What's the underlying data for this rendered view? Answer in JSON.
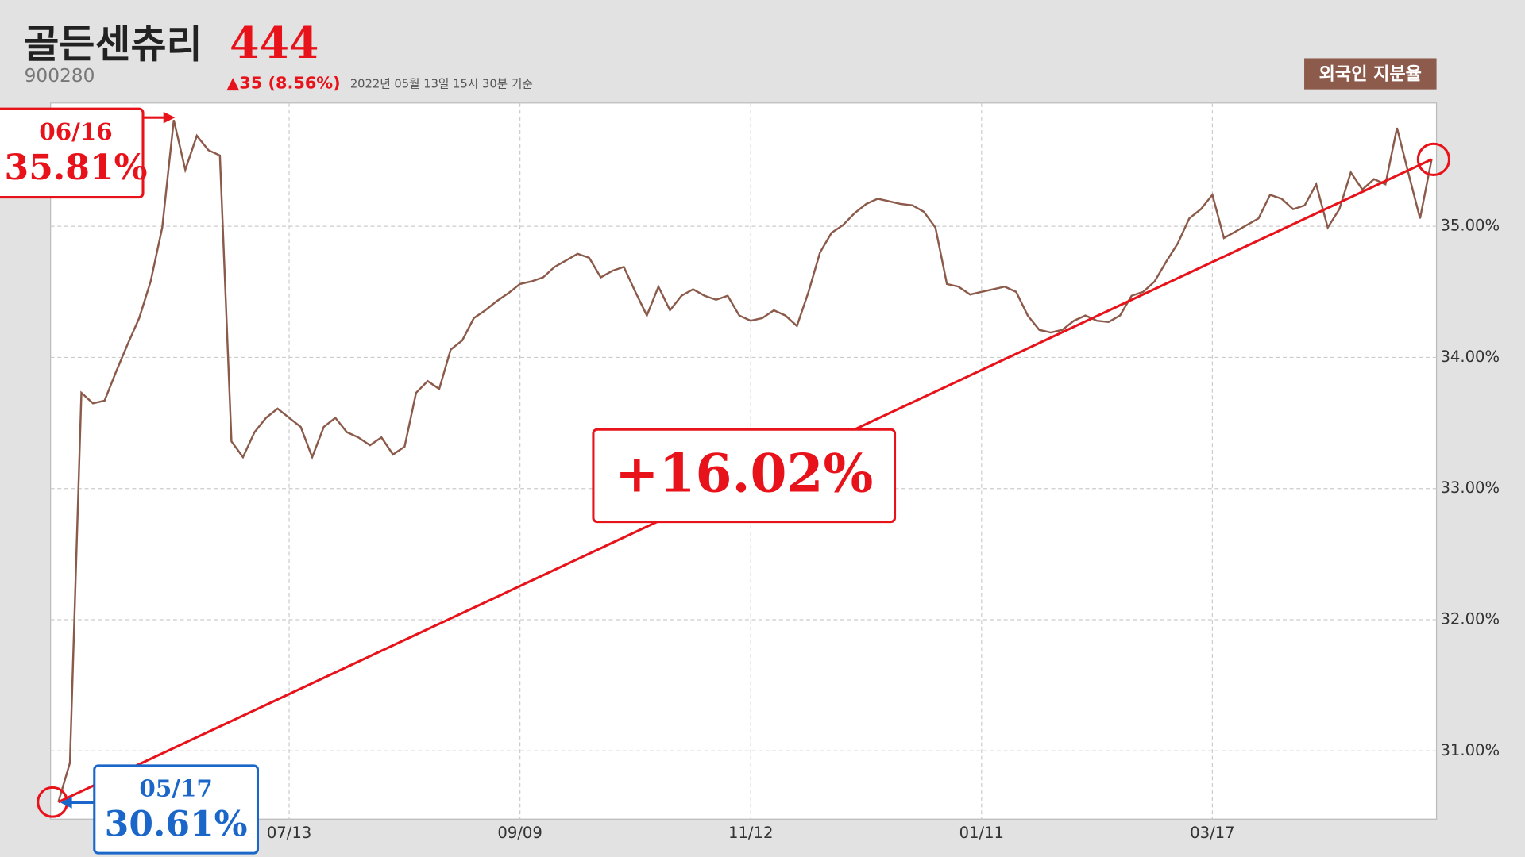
{
  "header": {
    "title": "골든센츄리",
    "price": "444",
    "code": "900280",
    "change": "▲35 (8.56%)",
    "timestamp": "2022년 05월 13일 15시 30분 기준",
    "badge": "외국인 지분율"
  },
  "chart_data": {
    "type": "line",
    "categories": [
      null,
      null,
      null,
      null,
      null,
      null,
      null,
      null,
      null,
      null,
      null,
      null,
      null,
      null,
      null,
      null,
      null,
      null,
      null,
      null,
      "07/13",
      null,
      null,
      null,
      null,
      null,
      null,
      null,
      null,
      null,
      null,
      null,
      null,
      null,
      null,
      null,
      null,
      null,
      null,
      null,
      "09/09",
      null,
      null,
      null,
      null,
      null,
      null,
      null,
      null,
      null,
      null,
      null,
      null,
      null,
      null,
      null,
      null,
      null,
      null,
      null,
      "11/12",
      null,
      null,
      null,
      null,
      null,
      null,
      null,
      null,
      null,
      null,
      null,
      null,
      null,
      null,
      null,
      null,
      null,
      null,
      null,
      "01/11",
      null,
      null,
      null,
      null,
      null,
      null,
      null,
      null,
      null,
      null,
      null,
      null,
      null,
      null,
      null,
      null,
      null,
      null,
      null,
      "03/17",
      null,
      null,
      null,
      null,
      null,
      null,
      null,
      null,
      null,
      null,
      null,
      null,
      null,
      null,
      null,
      null,
      null,
      null,
      null
    ],
    "series": [
      {
        "name": "외국인 지분율",
        "color": "#8b5a4a",
        "values": [
          30.61,
          30.91,
          33.73,
          33.65,
          33.67,
          33.89,
          34.1,
          34.3,
          34.58,
          34.99,
          35.81,
          35.43,
          35.69,
          35.58,
          35.54,
          33.36,
          33.24,
          33.43,
          33.54,
          33.61,
          33.54,
          33.47,
          33.24,
          33.47,
          33.54,
          33.43,
          33.39,
          33.33,
          33.39,
          33.26,
          33.32,
          33.73,
          33.82,
          33.76,
          34.06,
          34.13,
          34.3,
          34.36,
          34.43,
          34.49,
          34.56,
          34.58,
          34.61,
          34.69,
          34.74,
          34.79,
          34.76,
          34.61,
          34.66,
          34.69,
          34.5,
          34.32,
          34.54,
          34.36,
          34.47,
          34.52,
          34.47,
          34.44,
          34.47,
          34.32,
          34.28,
          34.3,
          34.36,
          34.32,
          34.24,
          34.5,
          34.8,
          34.95,
          35.01,
          35.1,
          35.17,
          35.21,
          35.19,
          35.17,
          35.16,
          35.11,
          34.99,
          34.56,
          34.54,
          34.48,
          34.5,
          34.52,
          34.54,
          34.5,
          34.32,
          34.21,
          34.19,
          34.21,
          34.28,
          34.32,
          34.28,
          34.27,
          34.32,
          34.47,
          34.5,
          34.58,
          34.73,
          34.87,
          35.06,
          35.13,
          35.24,
          34.91,
          34.96,
          35.01,
          35.06,
          35.24,
          35.21,
          35.13,
          35.16,
          35.32,
          34.99,
          35.13,
          35.41,
          35.28,
          35.36,
          35.32,
          35.75,
          35.4,
          35.06,
          35.51
        ]
      }
    ],
    "ylim": [
      30.48,
      35.94
    ],
    "yticks": [
      {
        "value": 31,
        "label": "31.00%"
      },
      {
        "value": 32,
        "label": "32.00%"
      },
      {
        "value": 33,
        "label": "33.00%"
      },
      {
        "value": 34,
        "label": "34.00%"
      },
      {
        "value": 35,
        "label": "35.00%"
      }
    ],
    "grid": true,
    "annotations": [
      {
        "x": "05/17",
        "value": 30.61,
        "label": "30.61%",
        "color": "#1a66c9"
      },
      {
        "x": "06/16",
        "value": 35.81,
        "label": "35.81%",
        "color": "#e8121a"
      }
    ],
    "change_label": "+16.02%",
    "trend_color": "#e8121a"
  }
}
